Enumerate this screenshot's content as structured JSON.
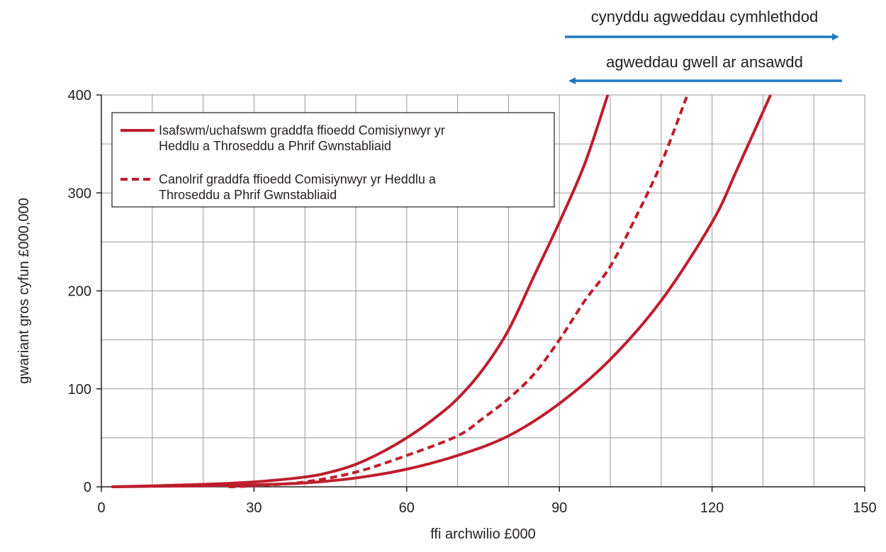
{
  "chart_data": {
    "type": "line",
    "xlabel": "ffi archwilio £000",
    "ylabel": "gwariant gros cyfun £000,000",
    "xlim": [
      0,
      150
    ],
    "ylim": [
      0,
      400
    ],
    "xticks": [
      0,
      30,
      60,
      90,
      120,
      150
    ],
    "yticks": [
      0,
      100,
      200,
      300,
      400
    ],
    "xgrid_step": 10,
    "ygrid_step": 50,
    "grid": true,
    "legend_position": "top-left",
    "colors": {
      "series": "#be1e2d",
      "arrow": "#1f78c1",
      "grid": "#9a9a9a",
      "axis": "#231f20"
    },
    "annotations": [
      {
        "text": "cynyddu agweddau cymhlethdod",
        "direction": "right"
      },
      {
        "text": "agweddau gwell ar ansawdd",
        "direction": "left"
      }
    ],
    "series": [
      {
        "name": "Isafswm/uchafswm graddfa ffioedd Comisiynwyr yr Heddlu a Throseddu a Phrif Gwnstabliaid",
        "style": "solid",
        "x": [
          2,
          10,
          20,
          30,
          40,
          45,
          50,
          55,
          60,
          65,
          70,
          75,
          80,
          85,
          90,
          95,
          99.5
        ],
        "y": [
          0,
          1,
          2.5,
          5,
          10,
          15,
          23,
          35,
          50,
          68,
          90,
          120,
          160,
          215,
          270,
          330,
          400
        ]
      },
      {
        "name": "",
        "style": "solid",
        "x": [
          2,
          10,
          20,
          30,
          40,
          50,
          60,
          70,
          80,
          90,
          100,
          110,
          120,
          125,
          131.5
        ],
        "y": [
          0,
          0.5,
          1,
          2,
          4,
          9,
          18,
          32,
          52,
          85,
          130,
          190,
          270,
          325,
          400
        ]
      },
      {
        "name": "Canolrif graddfa ffioedd Comisiynwyr yr Heddlu a Throseddu a Phrif Gwnstabliaid",
        "style": "dashed",
        "x": [
          25,
          30,
          40,
          50,
          60,
          70,
          75,
          80,
          85,
          90,
          95,
          100,
          105,
          110,
          115
        ],
        "y": [
          0,
          1,
          5,
          15,
          32,
          52,
          70,
          90,
          115,
          150,
          190,
          225,
          275,
          330,
          398
        ]
      }
    ]
  }
}
